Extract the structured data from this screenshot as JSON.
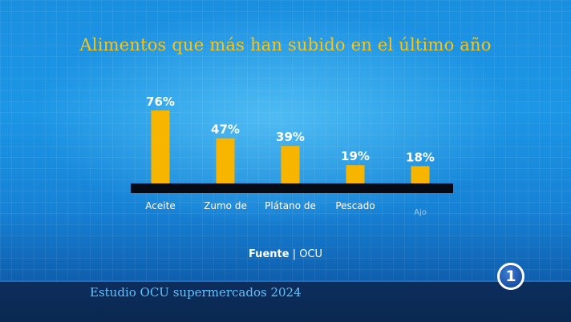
{
  "chart_data": {
    "type": "bar",
    "title": "Alimentos que más han subido en el último año",
    "categories": [
      "Aceite",
      "Zumo de",
      "Plátano de",
      "Pescado",
      "Ajo"
    ],
    "values": [
      76,
      47,
      39,
      19,
      18
    ],
    "value_labels": [
      "76%",
      "47%",
      "39%",
      "19%",
      "18%"
    ],
    "ylim": [
      0,
      80
    ],
    "bar_color": "#f7b500",
    "baseline_color": "#050a14",
    "label_color": "#ffffff",
    "grid": false
  },
  "source": {
    "label": "Fuente",
    "separator": "|",
    "value": "OCU"
  },
  "caption": "Estudio OCU supermercados 2024",
  "channel_logo": "1",
  "colors": {
    "title": "#f7c51a",
    "caption": "#62c2ff"
  }
}
